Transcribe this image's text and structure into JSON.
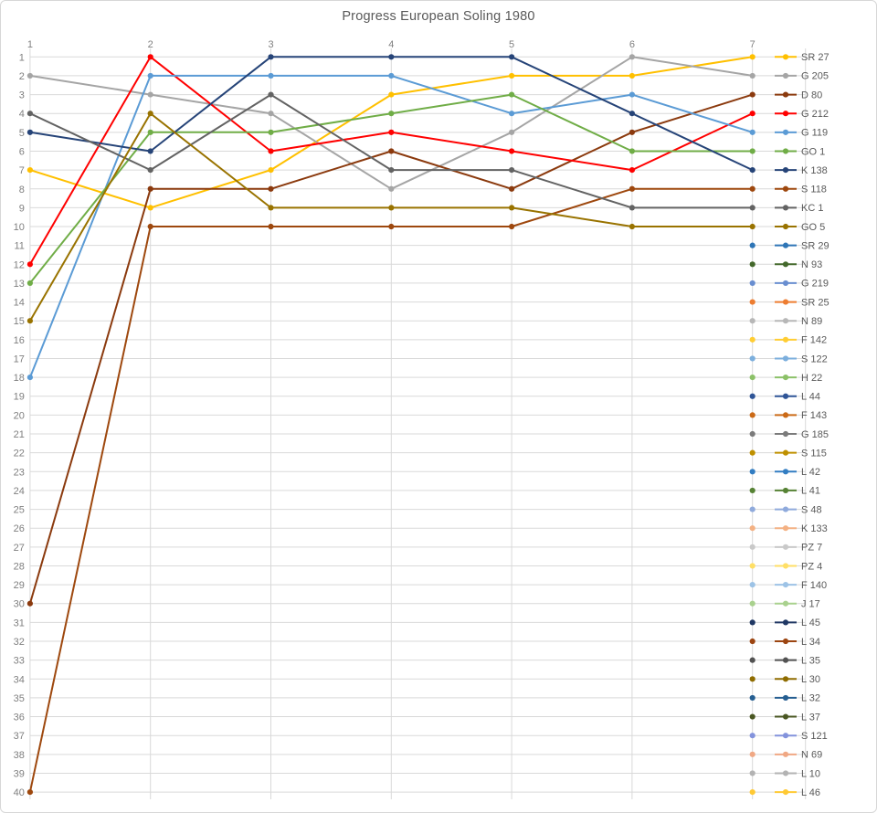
{
  "window": {
    "background": "#FFFFFF",
    "border_color": "#D7D7D7"
  },
  "chart_data": {
    "type": "line",
    "title": "Progress European Soling 1980",
    "title_color": "#595959",
    "xlabel": "",
    "ylabel": "",
    "x_axis": {
      "position": "top",
      "ticks": [
        "1",
        "2",
        "3",
        "4",
        "5",
        "6",
        "7"
      ]
    },
    "y_axis": {
      "reversed": true,
      "min": 1,
      "max": 40,
      "ticks": [
        "1",
        "2",
        "3",
        "4",
        "5",
        "6",
        "7",
        "8",
        "9",
        "10",
        "11",
        "12",
        "13",
        "14",
        "15",
        "16",
        "17",
        "18",
        "19",
        "20",
        "21",
        "22",
        "23",
        "24",
        "25",
        "26",
        "27",
        "28",
        "29",
        "30",
        "31",
        "32",
        "33",
        "34",
        "35",
        "36",
        "37",
        "38",
        "39",
        "40"
      ]
    },
    "grid": {
      "show": true,
      "color": "#D9D9D9"
    },
    "axis_label_color": "#7F7F7F",
    "legend": {
      "position": "right",
      "text_color": "#595959"
    },
    "series": [
      {
        "name": "SR 27",
        "color": "#FFC000",
        "values": [
          7,
          9,
          7,
          3,
          2,
          2,
          1
        ]
      },
      {
        "name": "G 205",
        "color": "#A5A5A5",
        "values": [
          2,
          3,
          4,
          8,
          5,
          1,
          2
        ]
      },
      {
        "name": "D 80",
        "color": "#8B3A0E",
        "values": [
          30,
          8,
          8,
          6,
          8,
          5,
          3
        ]
      },
      {
        "name": "G 212",
        "color": "#FF0000",
        "values": [
          12,
          1,
          6,
          5,
          6,
          7,
          4
        ]
      },
      {
        "name": "G 119",
        "color": "#5B9BD5",
        "values": [
          18,
          2,
          2,
          2,
          4,
          3,
          5
        ]
      },
      {
        "name": "GO 1",
        "color": "#70AD47",
        "values": [
          13,
          5,
          5,
          4,
          3,
          6,
          6
        ]
      },
      {
        "name": "K 138",
        "color": "#264478",
        "values": [
          5,
          6,
          1,
          1,
          1,
          4,
          7
        ]
      },
      {
        "name": "S 118",
        "color": "#9E480E",
        "values": [
          40,
          10,
          10,
          10,
          10,
          8,
          8
        ]
      },
      {
        "name": "KC 1",
        "color": "#636363",
        "values": [
          4,
          7,
          3,
          7,
          7,
          9,
          9
        ]
      },
      {
        "name": "GO 5",
        "color": "#997300",
        "values": [
          15,
          4,
          9,
          9,
          9,
          10,
          10
        ]
      },
      {
        "name": "SR 29",
        "color": "#2E75B6",
        "values": [
          null,
          null,
          null,
          null,
          null,
          null,
          11
        ]
      },
      {
        "name": "N 93",
        "color": "#43682B",
        "values": [
          null,
          null,
          null,
          null,
          null,
          null,
          12
        ]
      },
      {
        "name": "G 219",
        "color": "#698ED0",
        "values": [
          null,
          null,
          null,
          null,
          null,
          null,
          13
        ]
      },
      {
        "name": "SR 25",
        "color": "#ED7D31",
        "values": [
          null,
          null,
          null,
          null,
          null,
          null,
          14
        ]
      },
      {
        "name": "N 89",
        "color": "#B7B7B7",
        "values": [
          null,
          null,
          null,
          null,
          null,
          null,
          15
        ]
      },
      {
        "name": "F 142",
        "color": "#FFCD33",
        "values": [
          null,
          null,
          null,
          null,
          null,
          null,
          16
        ]
      },
      {
        "name": "S 122",
        "color": "#7CAFDD",
        "values": [
          null,
          null,
          null,
          null,
          null,
          null,
          17
        ]
      },
      {
        "name": "H 22",
        "color": "#8CC168",
        "values": [
          null,
          null,
          null,
          null,
          null,
          null,
          18
        ]
      },
      {
        "name": "L 44",
        "color": "#2F5597",
        "values": [
          null,
          null,
          null,
          null,
          null,
          null,
          19
        ]
      },
      {
        "name": "F 143",
        "color": "#CB6A17",
        "values": [
          null,
          null,
          null,
          null,
          null,
          null,
          20
        ]
      },
      {
        "name": "G 185",
        "color": "#7B7B7B",
        "values": [
          null,
          null,
          null,
          null,
          null,
          null,
          21
        ]
      },
      {
        "name": "S 115",
        "color": "#BF9000",
        "values": [
          null,
          null,
          null,
          null,
          null,
          null,
          22
        ]
      },
      {
        "name": "L 42",
        "color": "#327DC2",
        "values": [
          null,
          null,
          null,
          null,
          null,
          null,
          23
        ]
      },
      {
        "name": "L 41",
        "color": "#568234",
        "values": [
          null,
          null,
          null,
          null,
          null,
          null,
          24
        ]
      },
      {
        "name": "S 48",
        "color": "#8FAADC",
        "values": [
          null,
          null,
          null,
          null,
          null,
          null,
          25
        ]
      },
      {
        "name": "K 133",
        "color": "#F4B183",
        "values": [
          null,
          null,
          null,
          null,
          null,
          null,
          26
        ]
      },
      {
        "name": "PZ 7",
        "color": "#C9C9C9",
        "values": [
          null,
          null,
          null,
          null,
          null,
          null,
          27
        ]
      },
      {
        "name": "PZ 4",
        "color": "#FFDF66",
        "values": [
          null,
          null,
          null,
          null,
          null,
          null,
          28
        ]
      },
      {
        "name": "F 140",
        "color": "#9DC3E6",
        "values": [
          null,
          null,
          null,
          null,
          null,
          null,
          29
        ]
      },
      {
        "name": "J 17",
        "color": "#A9D18E",
        "values": [
          null,
          null,
          null,
          null,
          null,
          null,
          30
        ]
      },
      {
        "name": "L 45",
        "color": "#203864",
        "values": [
          null,
          null,
          null,
          null,
          null,
          null,
          31
        ]
      },
      {
        "name": "L 34",
        "color": "#9C4511",
        "values": [
          null,
          null,
          null,
          null,
          null,
          null,
          32
        ]
      },
      {
        "name": "L 35",
        "color": "#525252",
        "values": [
          null,
          null,
          null,
          null,
          null,
          null,
          33
        ]
      },
      {
        "name": "L 30",
        "color": "#8F6C00",
        "values": [
          null,
          null,
          null,
          null,
          null,
          null,
          34
        ]
      },
      {
        "name": "L 32",
        "color": "#255E91",
        "values": [
          null,
          null,
          null,
          null,
          null,
          null,
          35
        ]
      },
      {
        "name": "L 37",
        "color": "#4A5723",
        "values": [
          null,
          null,
          null,
          null,
          null,
          null,
          36
        ]
      },
      {
        "name": "S 121",
        "color": "#8393DC",
        "values": [
          null,
          null,
          null,
          null,
          null,
          null,
          37
        ]
      },
      {
        "name": "N 69",
        "color": "#F0A884",
        "values": [
          null,
          null,
          null,
          null,
          null,
          null,
          38
        ]
      },
      {
        "name": "L 10",
        "color": "#B3B3B3",
        "values": [
          null,
          null,
          null,
          null,
          null,
          null,
          39
        ]
      },
      {
        "name": "L 46",
        "color": "#FFC933",
        "values": [
          null,
          null,
          null,
          null,
          null,
          null,
          40
        ]
      }
    ]
  }
}
